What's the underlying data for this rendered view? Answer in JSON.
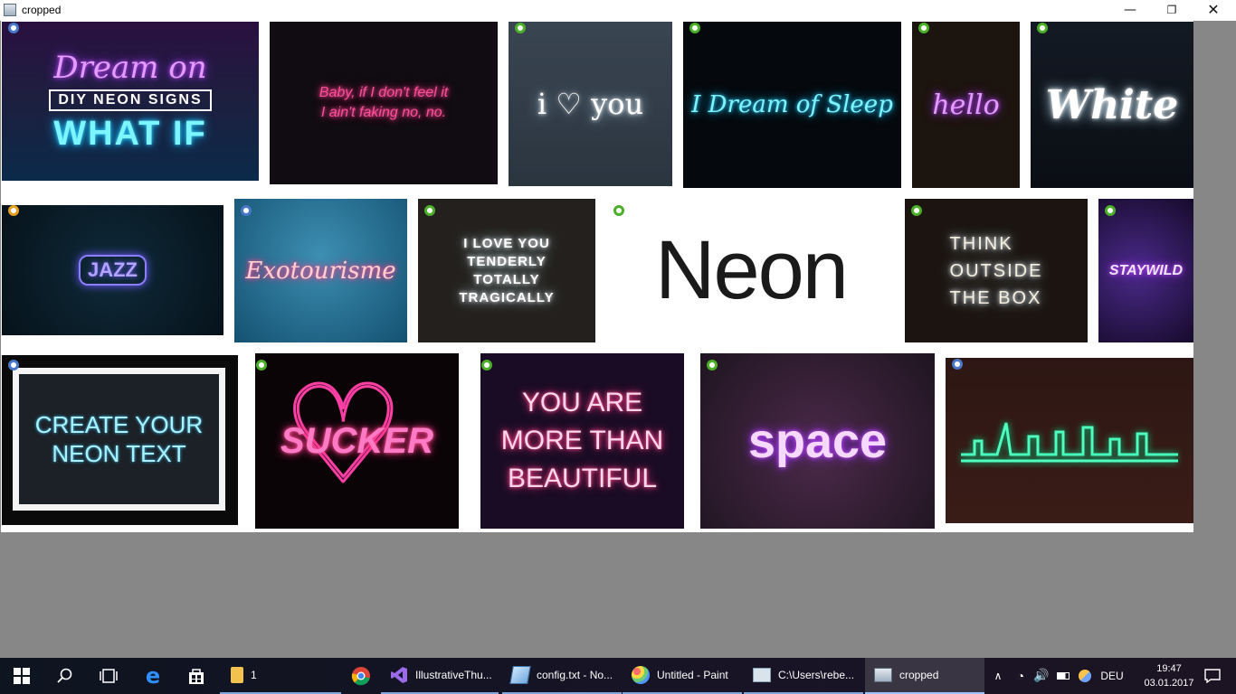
{
  "window": {
    "title": "cropped",
    "minimize_glyph": "—",
    "maximize_glyph": "❐",
    "close_glyph": "✕"
  },
  "tiles": {
    "dream_on": {
      "line1": "Dream on",
      "line2": "DIY NEON SIGNS",
      "line3": "WHAT IF"
    },
    "baby": "Baby, if I don't feel it\nI ain't faking no, no.",
    "i_love_you": "i ♡ you",
    "dream_of_sleep": "I Dream of Sleep",
    "hello": "hello",
    "white": "White",
    "jazz": "JAZZ",
    "exotourisme": "Exotourisme",
    "tragically": "I LOVE YOU\nTENDERLY\nTOTALLY\nTRAGICALLY",
    "neon": "Neon",
    "think_outside": "THINK\nOUTSIDE\nTHE BOX",
    "stay_wild": "STAYWILD",
    "create_neon": "CREATE YOUR\nNEON TEXT",
    "sucker": "SUCKER",
    "beautiful": "YOU ARE\nMORE THAN\nBEAUTIFUL",
    "space": "space"
  },
  "taskbar": {
    "file_explorer_count": "1",
    "items": [
      {
        "label": "IllustrativeThu...",
        "icon": "visual-studio-icon"
      },
      {
        "label": "config.txt - No...",
        "icon": "notepad-icon"
      },
      {
        "label": "Untitled - Paint",
        "icon": "paint-icon"
      },
      {
        "label": "C:\\Users\\rebe...",
        "icon": "console-icon"
      },
      {
        "label": "cropped",
        "icon": "image-viewer-icon"
      }
    ],
    "language": "DEU",
    "time": "19:47",
    "date": "03.01.2017"
  },
  "colors": {
    "canvas_bg": "#ffffff",
    "desktop_bg": "#878787",
    "taskbar_bg": "#0e1420",
    "badge_green": "#4caf2a",
    "badge_blue": "#4a78c8",
    "badge_orange": "#e8a020"
  }
}
